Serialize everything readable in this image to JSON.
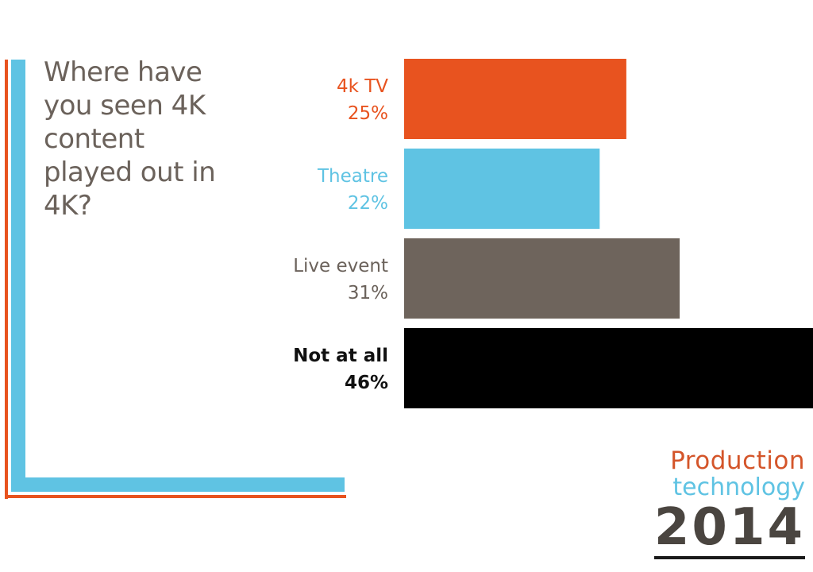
{
  "question": "Where have you seen 4K content played out in 4K?",
  "chart_data": {
    "type": "bar",
    "orientation": "horizontal",
    "categories": [
      "4k TV",
      "Theatre",
      "Live event",
      "Not at all"
    ],
    "values": [
      25,
      22,
      31,
      46
    ],
    "value_labels": [
      "25%",
      "22%",
      "31%",
      "46%"
    ],
    "unit": "%",
    "colors": [
      "#e8531f",
      "#5fc3e3",
      "#6e645c",
      "#000000"
    ],
    "label_colors": [
      "#e8531f",
      "#5fc3e3",
      "#6b625b",
      "#111111"
    ],
    "label_bold": [
      false,
      false,
      false,
      true
    ],
    "xlim": [
      0,
      46
    ],
    "grid": false,
    "title": "Where have you seen 4K content played out in 4K?"
  },
  "brand": {
    "line1": "Production",
    "line2": "technology",
    "year": "2014",
    "colors": {
      "line1": "#d4552a",
      "line2": "#5fc3e3",
      "year": "#4a4540"
    }
  }
}
